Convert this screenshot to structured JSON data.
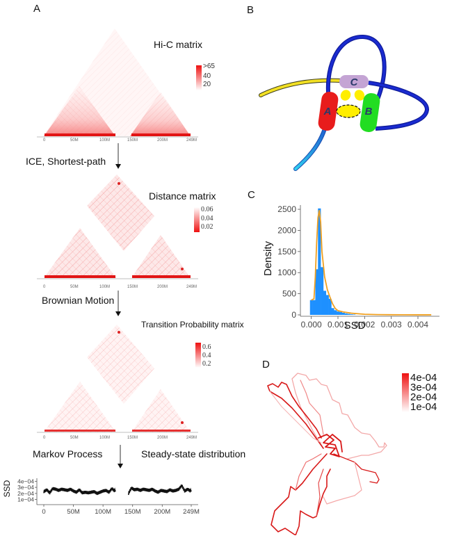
{
  "figure": {
    "panels": {
      "A": {
        "label": "A",
        "matrices": [
          {
            "title": "Hi-C matrix",
            "colorbar": {
              "ticks": [
                ">65",
                "40",
                "20"
              ],
              "high_color": "#ee1111",
              "low_color": "#ffffff",
              "direction": "high-top"
            },
            "xticks": [
              "0",
              "50M",
              "100M",
              "150M",
              "200M",
              "249M"
            ]
          },
          {
            "title": "Distance matrix",
            "colorbar": {
              "ticks": [
                "0.06",
                "0.04",
                "0.02"
              ],
              "high_color": "#ffffff",
              "low_color": "#ee1111",
              "direction": "low-bottom"
            },
            "xticks": [
              "0",
              "50M",
              "100M",
              "150M",
              "200M",
              "249M"
            ]
          },
          {
            "title": "Transition Probability matrix",
            "colorbar": {
              "ticks": [
                "0.6",
                "0.4",
                "0.2"
              ],
              "high_color": "#ee1111",
              "low_color": "#ffffff",
              "direction": "high-top"
            },
            "xticks": [
              "0",
              "50M",
              "100M",
              "150M",
              "200M",
              "249M"
            ]
          }
        ],
        "steps": [
          {
            "left": "ICE, Shortest-path",
            "right": ""
          },
          {
            "left": "Brownian Motion",
            "right": ""
          },
          {
            "left": "Markov Process",
            "right": "Steady-state distribution"
          }
        ],
        "ssd_track": {
          "ylabel": "SSD",
          "yticks": [
            "4e−04",
            "3e−04",
            "2e−04",
            "1e−04"
          ],
          "xticks": [
            "0",
            "50M",
            "100M",
            "150M",
            "200M",
            "249M"
          ]
        }
      },
      "B": {
        "label": "B",
        "domains": [
          "A",
          "B",
          "C"
        ],
        "colors": {
          "A": "#e81c1c",
          "B": "#22dd22",
          "C": "#c4a4d4",
          "chain": "#1a2bb8",
          "tail_yellow": "#f2e024",
          "tail_cyan": "#2bb8e8",
          "contact": "#ffee00"
        }
      },
      "C": {
        "label": "C"
      },
      "D": {
        "label": "D",
        "colorbar": {
          "ticks": [
            "4e-04",
            "3e-04",
            "2e-04",
            "1e-04"
          ],
          "high_color": "#ee1111",
          "low_color": "#ffffff"
        }
      }
    }
  },
  "chart_data": [
    {
      "type": "bar",
      "panel": "C",
      "title": "",
      "xlabel": "SSD",
      "ylabel": "Density",
      "xlim": [
        -0.0002,
        0.0046
      ],
      "ylim": [
        0,
        2600
      ],
      "xticks": [
        "0.000",
        "0.001",
        "0.002",
        "0.003",
        "0.004"
      ],
      "xtick_values": [
        0,
        0.001,
        0.002,
        0.003,
        0.004
      ],
      "yticks": [
        "0",
        "500",
        "1000",
        "1500",
        "2000",
        "2500"
      ],
      "ytick_values": [
        0,
        500,
        1000,
        1500,
        2000,
        2500
      ],
      "histogram": {
        "bin_width": 0.0001,
        "bin_starts": [
          -5e-05,
          5e-05,
          0.00015,
          0.00025,
          0.00035,
          0.00045,
          0.00055,
          0.00065,
          0.00075,
          0.00085,
          0.00095,
          0.00105,
          0.00115,
          0.00125,
          0.00135,
          0.00145,
          0.00155
        ],
        "values": [
          350,
          350,
          1080,
          2520,
          1130,
          570,
          470,
          380,
          160,
          110,
          80,
          70,
          50,
          35,
          25,
          15,
          10
        ],
        "color": "#1e90ff"
      },
      "density_curve": {
        "color": "#f0a020",
        "x": [
          0.0,
          0.0001,
          0.00015,
          0.0002,
          0.00025,
          0.0003,
          0.00035,
          0.0004,
          0.0005,
          0.0006,
          0.0007,
          0.0008,
          0.0009,
          0.001,
          0.0012,
          0.0015,
          0.002,
          0.0025,
          0.003,
          0.0035,
          0.004,
          0.0045
        ],
        "y": [
          350,
          380,
          900,
          1700,
          2300,
          2480,
          2200,
          1500,
          900,
          600,
          420,
          260,
          150,
          100,
          70,
          40,
          15,
          6,
          3,
          2,
          1,
          1
        ]
      }
    },
    {
      "type": "line",
      "panel": "A",
      "title": "Steady-state distribution",
      "xlabel": "",
      "ylabel": "SSD",
      "xlim": [
        0,
        249
      ],
      "ylim": [
        5e-05,
        0.00045
      ],
      "x_unit": "Mb",
      "xticks": [
        "0",
        "50M",
        "100M",
        "150M",
        "200M",
        "249M"
      ],
      "xtick_values": [
        0,
        50,
        100,
        150,
        200,
        249
      ],
      "yticks": [
        "4e−04",
        "3e−04",
        "2e−04",
        "1e−04"
      ],
      "ytick_values": [
        0.0004,
        0.0003,
        0.0002,
        0.0001
      ],
      "gaps": [
        [
          121,
          143
        ]
      ],
      "series": [
        {
          "name": "SSD",
          "color": "#111111",
          "x": [
            0,
            5,
            10,
            15,
            20,
            25,
            30,
            35,
            40,
            45,
            50,
            55,
            60,
            65,
            70,
            75,
            80,
            85,
            90,
            95,
            100,
            105,
            110,
            115,
            121,
            143,
            148,
            153,
            158,
            163,
            168,
            173,
            178,
            183,
            188,
            193,
            198,
            203,
            208,
            213,
            218,
            223,
            228,
            233,
            238,
            243,
            249
          ],
          "y": [
            0.00023,
            0.00026,
            0.00021,
            0.00028,
            0.00027,
            0.00025,
            0.00027,
            0.00026,
            0.00025,
            0.00027,
            0.00024,
            0.00022,
            0.00026,
            0.00021,
            0.00022,
            0.00021,
            0.00022,
            0.00023,
            0.0002,
            0.00022,
            0.00024,
            0.00025,
            0.00022,
            0.00028,
            0.00023,
            0.0002,
            0.00029,
            0.00026,
            0.00027,
            0.00025,
            0.00027,
            0.00026,
            0.00025,
            0.00027,
            0.00024,
            0.00022,
            0.00025,
            0.00024,
            0.00023,
            0.00026,
            0.00024,
            0.00025,
            0.00027,
            0.00033,
            0.00024,
            0.00027,
            0.00023
          ]
        }
      ]
    }
  ]
}
